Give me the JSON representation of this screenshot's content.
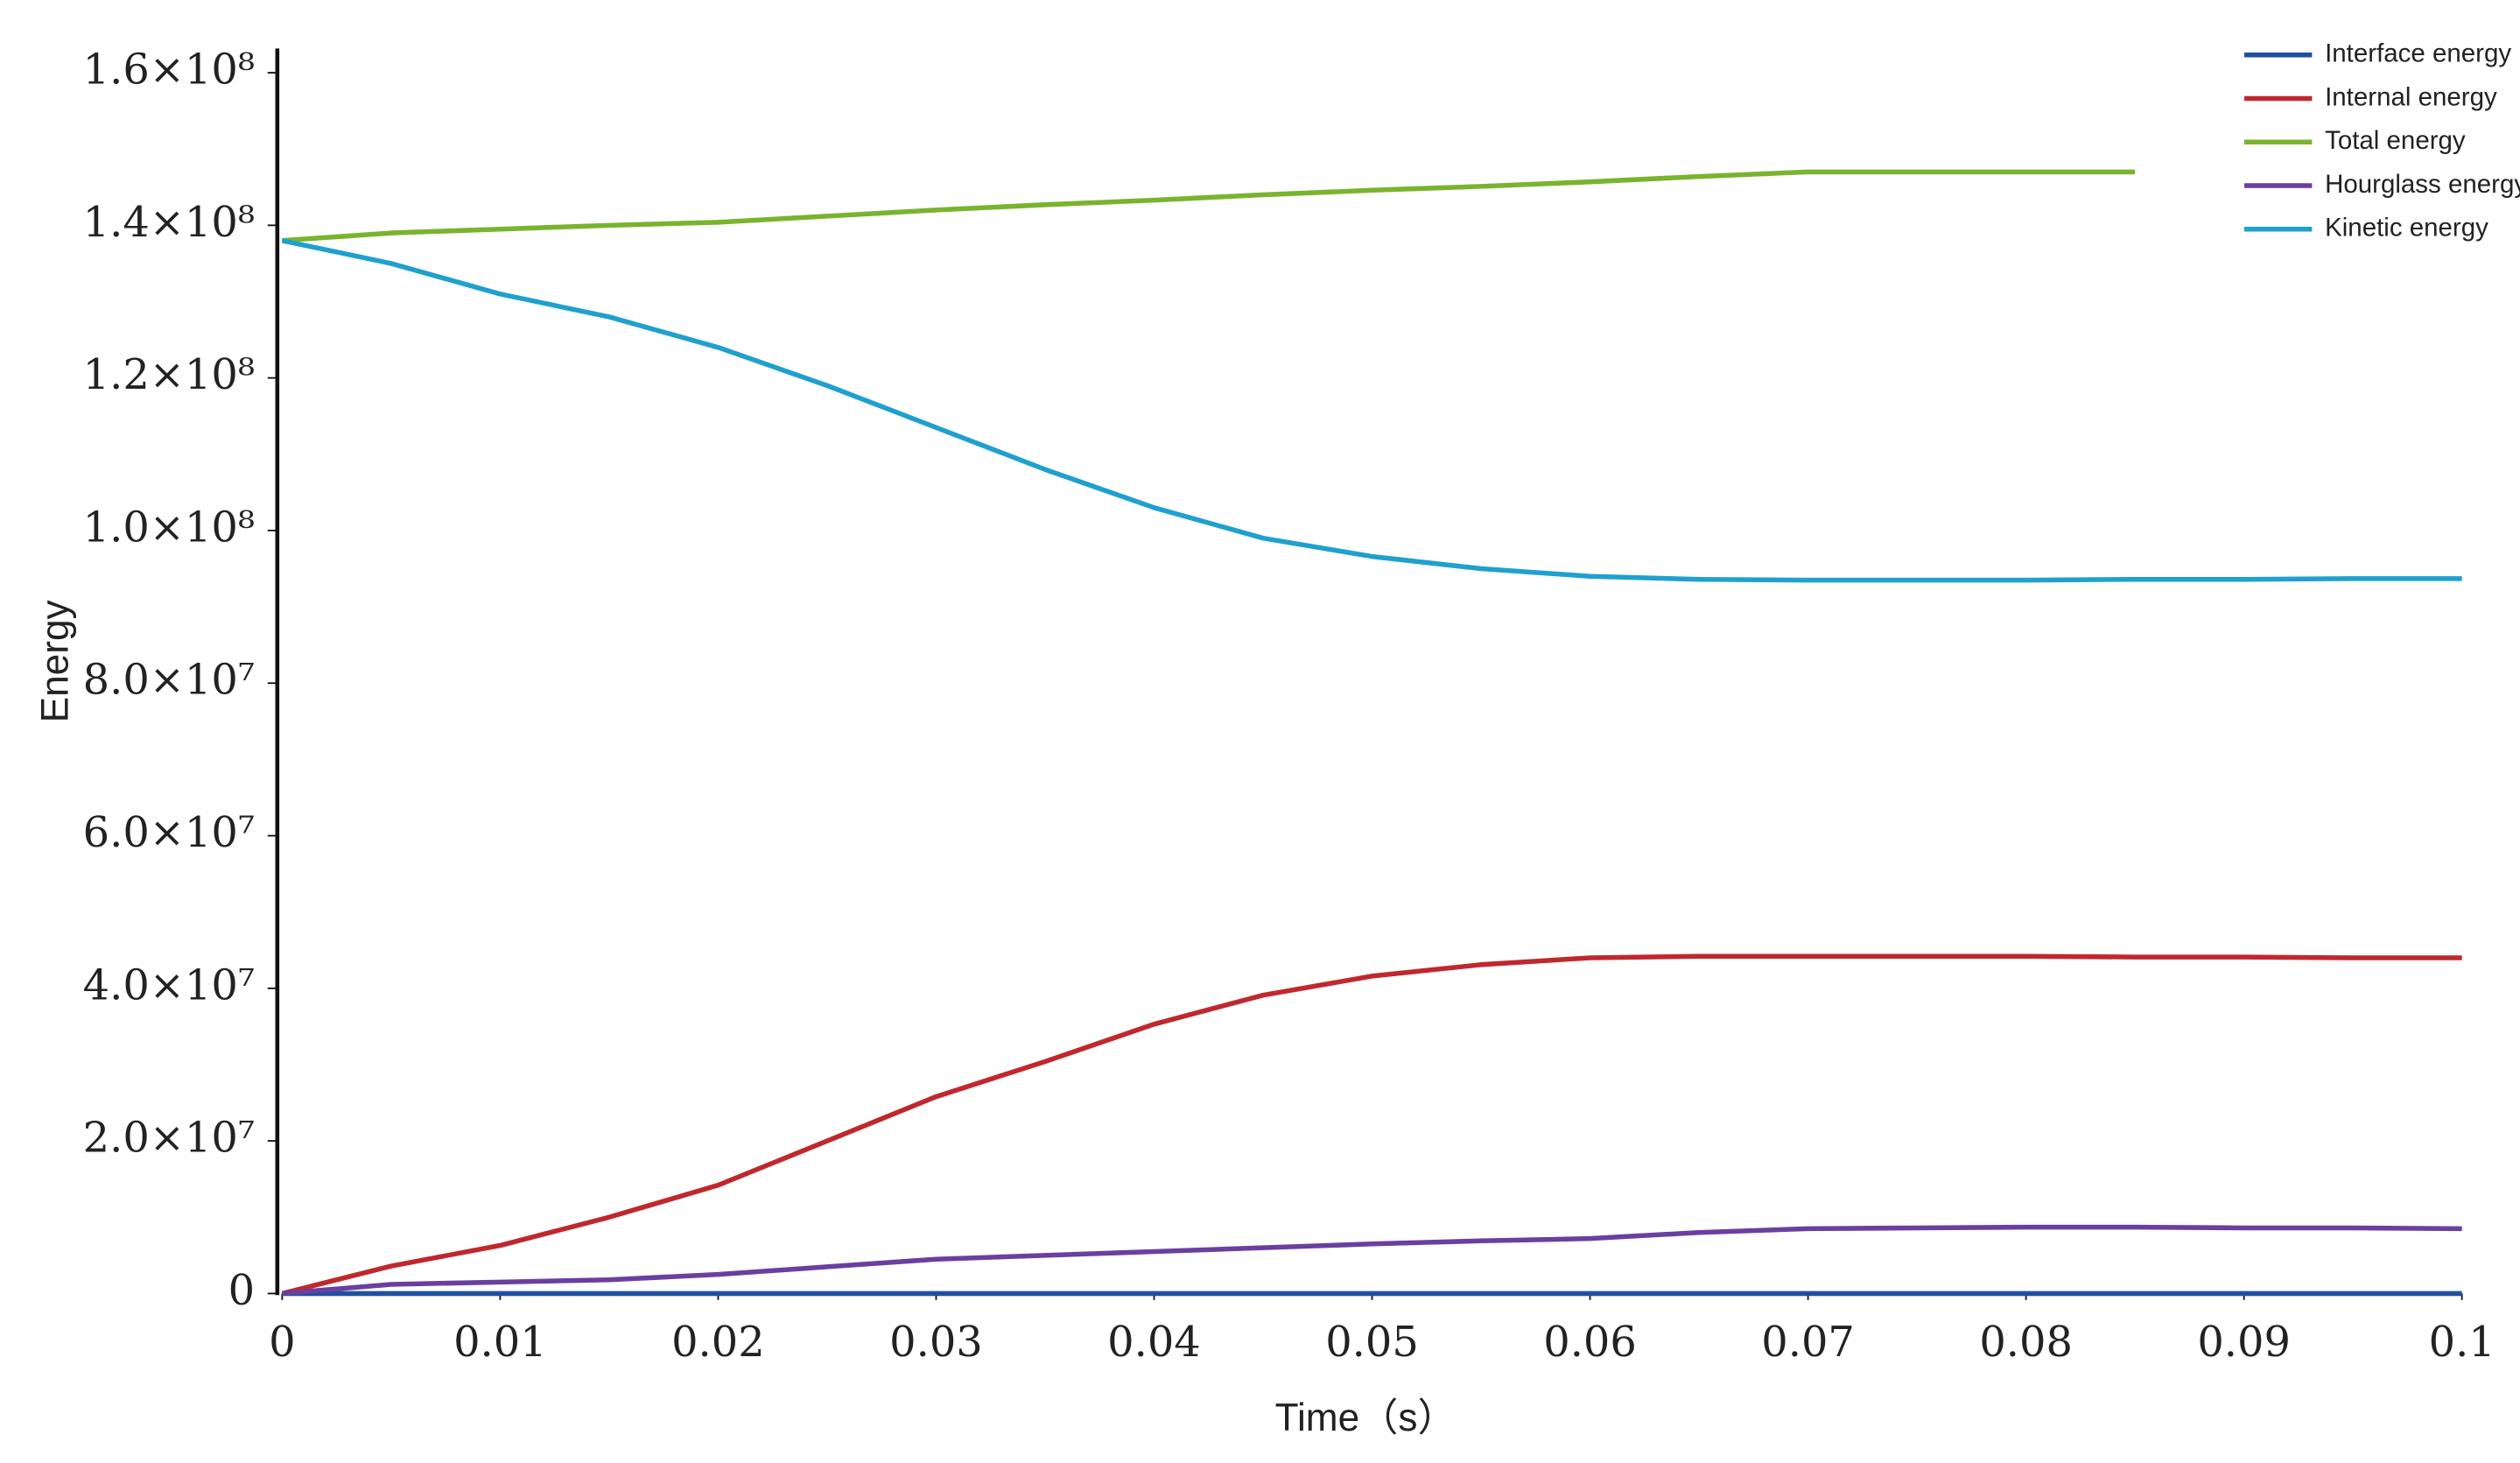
{
  "chart_data": {
    "type": "line",
    "x": [
      0,
      0.005,
      0.01,
      0.015,
      0.02,
      0.025,
      0.03,
      0.035,
      0.04,
      0.045,
      0.05,
      0.055,
      0.06,
      0.065,
      0.07,
      0.075,
      0.08,
      0.085,
      0.09,
      0.095,
      0.1
    ],
    "series": [
      {
        "name": "Interface energy",
        "color": "#1f4fa0",
        "values": [
          0,
          0,
          0,
          0,
          0,
          0,
          0,
          0,
          0,
          0,
          0,
          0,
          0,
          0,
          0,
          0,
          0,
          0,
          0,
          0,
          0
        ]
      },
      {
        "name": "Internal energy",
        "color": "#c0282d",
        "values": [
          0,
          3600000,
          6300000,
          10000000,
          14200000,
          20000000,
          25800000,
          30400000,
          35300000,
          39100000,
          41600000,
          43100000,
          44000000,
          44200000,
          44200000,
          44200000,
          44200000,
          44100000,
          44100000,
          44000000,
          44000000
        ]
      },
      {
        "name": "Total energy",
        "color": "#7ab32e",
        "values": [
          138000000,
          139000000,
          139500000,
          140000000,
          140400000,
          141200000,
          142000000,
          142700000,
          143300000,
          144000000,
          144600000,
          145100000,
          145700000,
          146400000,
          147000000,
          147000000,
          147000000,
          147000000,
          null,
          null,
          null
        ]
      },
      {
        "name": "Hourglass energy",
        "color": "#6a3fa0",
        "values": [
          0,
          1200000,
          1500000,
          1800000,
          2500000,
          3500000,
          4500000,
          5000000,
          5500000,
          6000000,
          6500000,
          6900000,
          7200000,
          8000000,
          8500000,
          8600000,
          8700000,
          8700000,
          8600000,
          8600000,
          8500000
        ]
      },
      {
        "name": "Kinetic energy",
        "color": "#1fa0cf",
        "values": [
          138000000,
          135000000,
          131000000,
          128000000,
          124000000,
          119000000,
          113500000,
          108000000,
          103000000,
          99000000,
          96600000,
          95000000,
          94000000,
          93600000,
          93500000,
          93500000,
          93500000,
          93600000,
          93600000,
          93700000,
          93700000
        ]
      }
    ],
    "xlim": [
      0,
      0.1
    ],
    "xticks": [
      0,
      0.01,
      0.02,
      0.03,
      0.04,
      0.05,
      0.06,
      0.07,
      0.08,
      0.09,
      0.1
    ],
    "ylim": [
      0,
      160000000
    ],
    "yticks": [
      0,
      {
        "value": 20000000,
        "label": "2.0×10⁷"
      },
      {
        "value": 40000000,
        "label": "4.0×10⁷"
      },
      {
        "value": 60000000,
        "label": "6.0×10⁷"
      },
      {
        "value": 80000000,
        "label": "8.0×10⁷"
      },
      {
        "value": 100000000,
        "label": "1.0×10⁸"
      },
      {
        "value": 120000000,
        "label": "1.2×10⁸"
      },
      {
        "value": 140000000,
        "label": "1.4×10⁸"
      },
      {
        "value": 160000000,
        "label": "1.6×10⁸"
      }
    ],
    "xlabel": "Time（s）",
    "ylabel": "Energy",
    "legend": "upper right",
    "grid": false
  }
}
